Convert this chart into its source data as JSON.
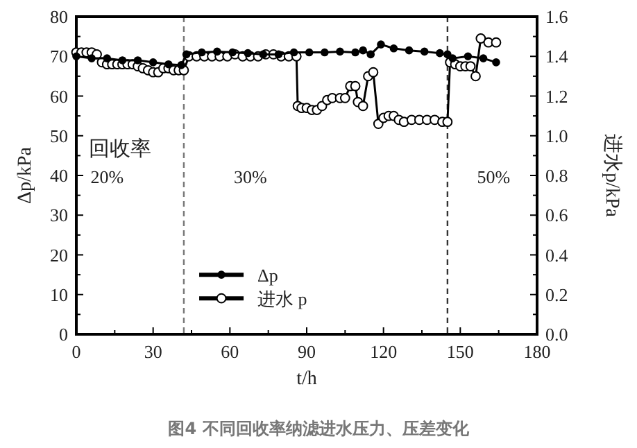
{
  "chart_data": {
    "type": "line",
    "title": "图4 不同回收率纳滤进水压力、压差变化",
    "xlabel": "t/h",
    "ylabel": "Δp/kPa",
    "y2label": "进水p/kPa",
    "xlim": [
      0,
      180
    ],
    "xticks": [
      0,
      30,
      60,
      90,
      120,
      150,
      180
    ],
    "ylim": [
      0,
      80
    ],
    "yticks": [
      0,
      10,
      20,
      30,
      40,
      50,
      60,
      70,
      80
    ],
    "y2lim": [
      0,
      1.6
    ],
    "y2ticks": [
      {
        "value": 0,
        "label": "0.0"
      },
      0.2,
      0.4,
      0.6,
      0.8,
      {
        "value": 1,
        "label": "1.0"
      },
      1.2,
      1.4,
      1.6
    ],
    "legend": "bottom",
    "marker": "circle",
    "line_style": "solid",
    "ref_lines": [
      {
        "axis": "x",
        "value": 42,
        "color": "#777777",
        "line_style": "dashed"
      },
      {
        "axis": "x",
        "value": 145,
        "color": "#333333",
        "line_style": "dashed"
      }
    ],
    "annotations": [
      "回收率",
      "20%",
      "30%",
      "50%"
    ],
    "series": [
      {
        "name": "Δp",
        "color": "#000000",
        "x": [
          0,
          6,
          12,
          18,
          24,
          30,
          36,
          41,
          43,
          49,
          55,
          61,
          67,
          73,
          79,
          85,
          91,
          97,
          103,
          109,
          112,
          115,
          119,
          124,
          130,
          136,
          142,
          145,
          147,
          153,
          159,
          164
        ],
        "values": [
          70,
          69.5,
          69.5,
          69,
          69,
          68.5,
          68,
          67.8,
          70.5,
          71,
          71.2,
          71,
          70.8,
          70.5,
          70.5,
          71,
          71,
          71,
          71.2,
          71,
          71.5,
          70.5,
          73,
          72,
          71.5,
          71.2,
          70.8,
          70.5,
          69.5,
          70,
          69.5,
          68.5
        ]
      },
      {
        "name": "进水 p",
        "color": "#000000",
        "axis": "y2",
        "x": [
          0,
          2,
          4,
          6,
          8,
          10,
          12,
          14,
          16,
          18,
          20,
          22,
          24,
          26,
          28,
          30,
          32,
          34,
          36,
          38,
          40,
          42,
          44,
          47,
          50,
          53,
          56,
          59,
          62,
          65,
          68,
          71,
          74,
          77,
          80,
          83,
          86,
          86.5,
          88,
          90,
          92,
          94,
          96,
          98,
          100,
          103,
          105,
          107,
          109,
          110,
          112,
          114,
          116,
          118,
          120,
          122,
          124,
          126,
          128,
          131,
          134,
          137,
          140,
          143,
          145,
          146,
          148,
          150,
          152,
          154,
          156,
          158,
          161,
          164
        ],
        "values": [
          1.42,
          1.42,
          1.42,
          1.42,
          1.41,
          1.37,
          1.36,
          1.36,
          1.36,
          1.36,
          1.36,
          1.36,
          1.35,
          1.34,
          1.33,
          1.32,
          1.32,
          1.34,
          1.34,
          1.33,
          1.33,
          1.33,
          1.4,
          1.4,
          1.4,
          1.4,
          1.4,
          1.4,
          1.41,
          1.4,
          1.4,
          1.4,
          1.41,
          1.41,
          1.4,
          1.4,
          1.4,
          1.15,
          1.14,
          1.14,
          1.13,
          1.13,
          1.15,
          1.18,
          1.19,
          1.19,
          1.19,
          1.25,
          1.25,
          1.17,
          1.15,
          1.3,
          1.32,
          1.06,
          1.09,
          1.1,
          1.1,
          1.08,
          1.07,
          1.08,
          1.08,
          1.08,
          1.08,
          1.07,
          1.07,
          1.37,
          1.36,
          1.35,
          1.35,
          1.35,
          1.3,
          1.49,
          1.47,
          1.47
        ]
      }
    ]
  }
}
